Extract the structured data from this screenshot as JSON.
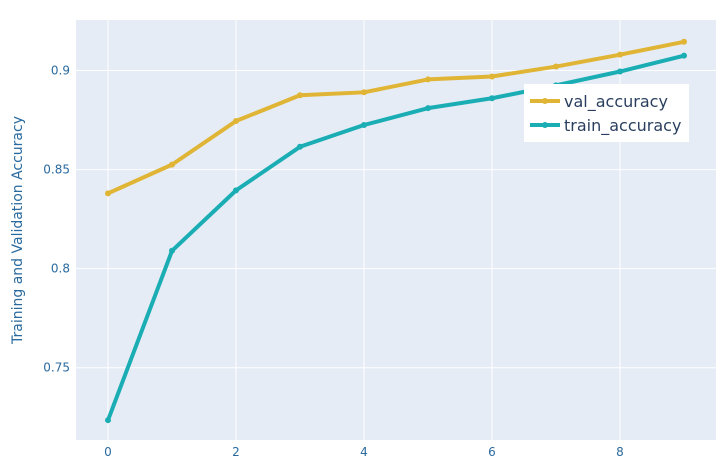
{
  "chart_data": {
    "type": "line",
    "xlabel": "",
    "ylabel": "Training and Validation Accuracy",
    "xlim": [
      -0.5,
      9.5
    ],
    "ylim": [
      0.7135,
      0.9255
    ],
    "xticks": [
      0,
      2,
      4,
      6,
      8
    ],
    "yticks": [
      0.75,
      0.8,
      0.85,
      0.9
    ],
    "grid": true,
    "legend_position": "top-right",
    "background": "#E5ECF6",
    "x": [
      0,
      1,
      2,
      3,
      4,
      5,
      6,
      7,
      8,
      9
    ],
    "series": [
      {
        "name": "val_accuracy",
        "color": "#E0B536",
        "values": [
          0.838,
          0.8525,
          0.8745,
          0.8875,
          0.889,
          0.8955,
          0.897,
          0.902,
          0.908,
          0.9145
        ]
      },
      {
        "name": "train_accuracy",
        "color": "#1AAEB4",
        "values": [
          0.7235,
          0.809,
          0.8395,
          0.8615,
          0.8725,
          0.881,
          0.886,
          0.8925,
          0.8995,
          0.9075
        ]
      }
    ]
  }
}
